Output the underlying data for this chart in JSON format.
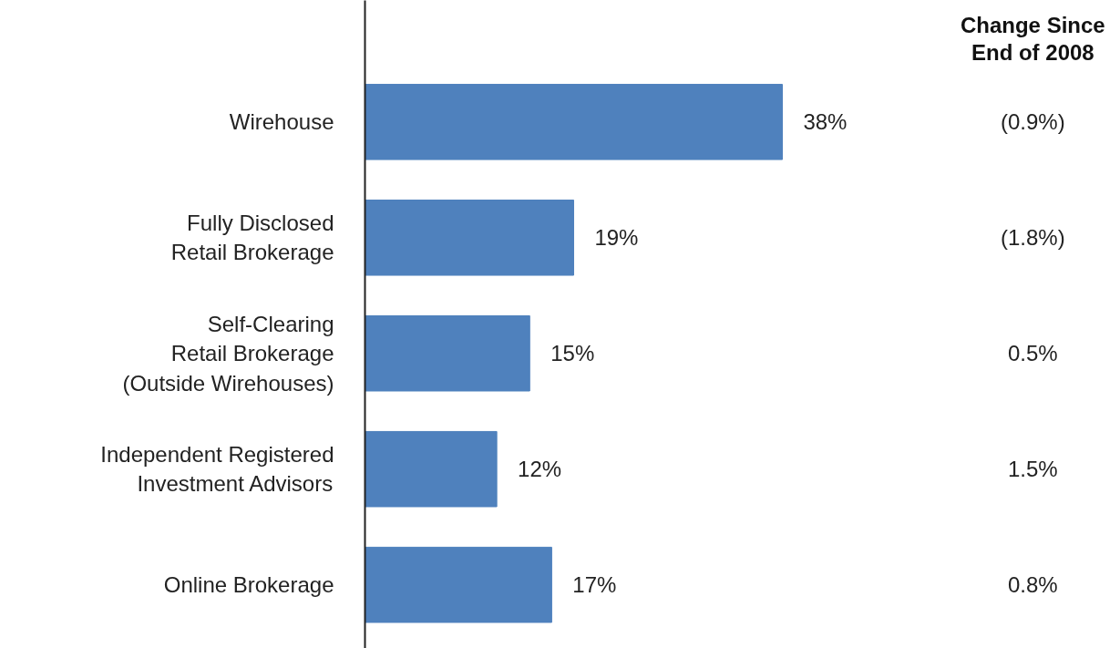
{
  "chart_data": {
    "type": "bar",
    "orientation": "horizontal",
    "categories": [
      "Wirehouse",
      "Fully Disclosed\nRetail Brokerage",
      "Self-Clearing\nRetail Brokerage\n(Outside Wirehouses)",
      "Independent Registered\nInvestment Advisors",
      "Online Brokerage"
    ],
    "values": [
      38,
      19,
      15,
      12,
      17
    ],
    "color": "#4f81bd",
    "value_labels": [
      "38%",
      "19%",
      "15%",
      "12%",
      "17%"
    ],
    "grid": false,
    "legend_title": "Change Since\nEnd of 2008",
    "annotations": [
      "(0.9%)",
      "(1.8%)",
      "0.5%",
      "1.5%",
      "0.8%"
    ]
  }
}
